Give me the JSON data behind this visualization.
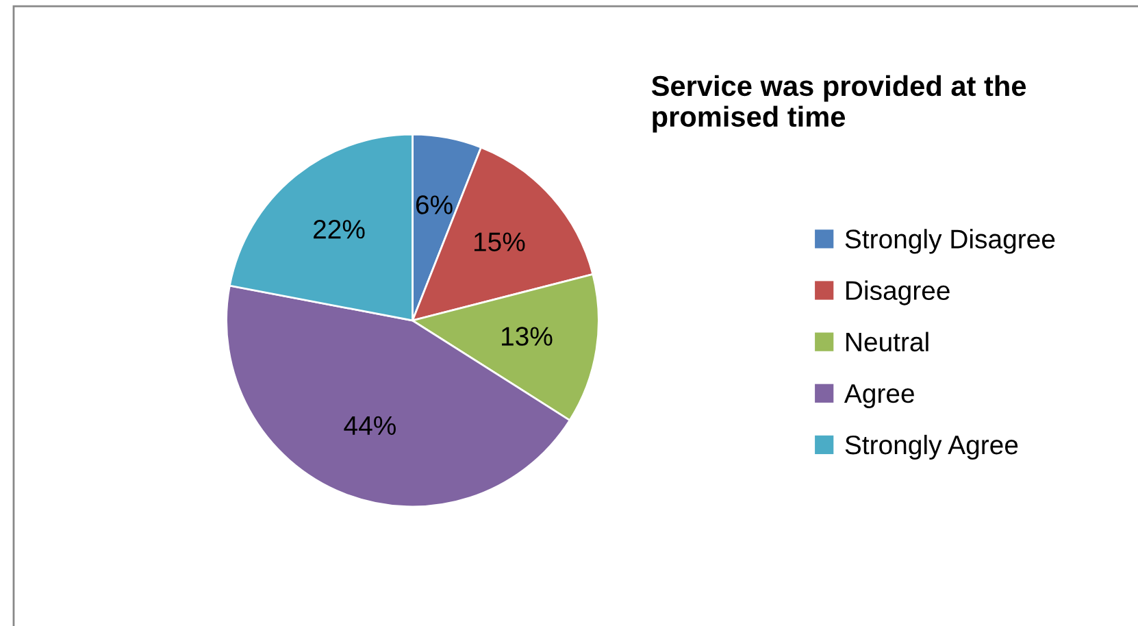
{
  "chart_data": {
    "type": "pie",
    "title": "Service was provided at the promised time",
    "categories": [
      "Strongly Disagree",
      "Disagree",
      "Neutral",
      "Agree",
      "Strongly Agree"
    ],
    "values": [
      6,
      15,
      13,
      44,
      22
    ],
    "colors": [
      "#4f81bd",
      "#c0504d",
      "#9bbb59",
      "#8064a2",
      "#4bacc6"
    ],
    "value_labels": [
      "6%",
      "15%",
      "13%",
      "44%",
      "22%"
    ],
    "legend": "right"
  }
}
